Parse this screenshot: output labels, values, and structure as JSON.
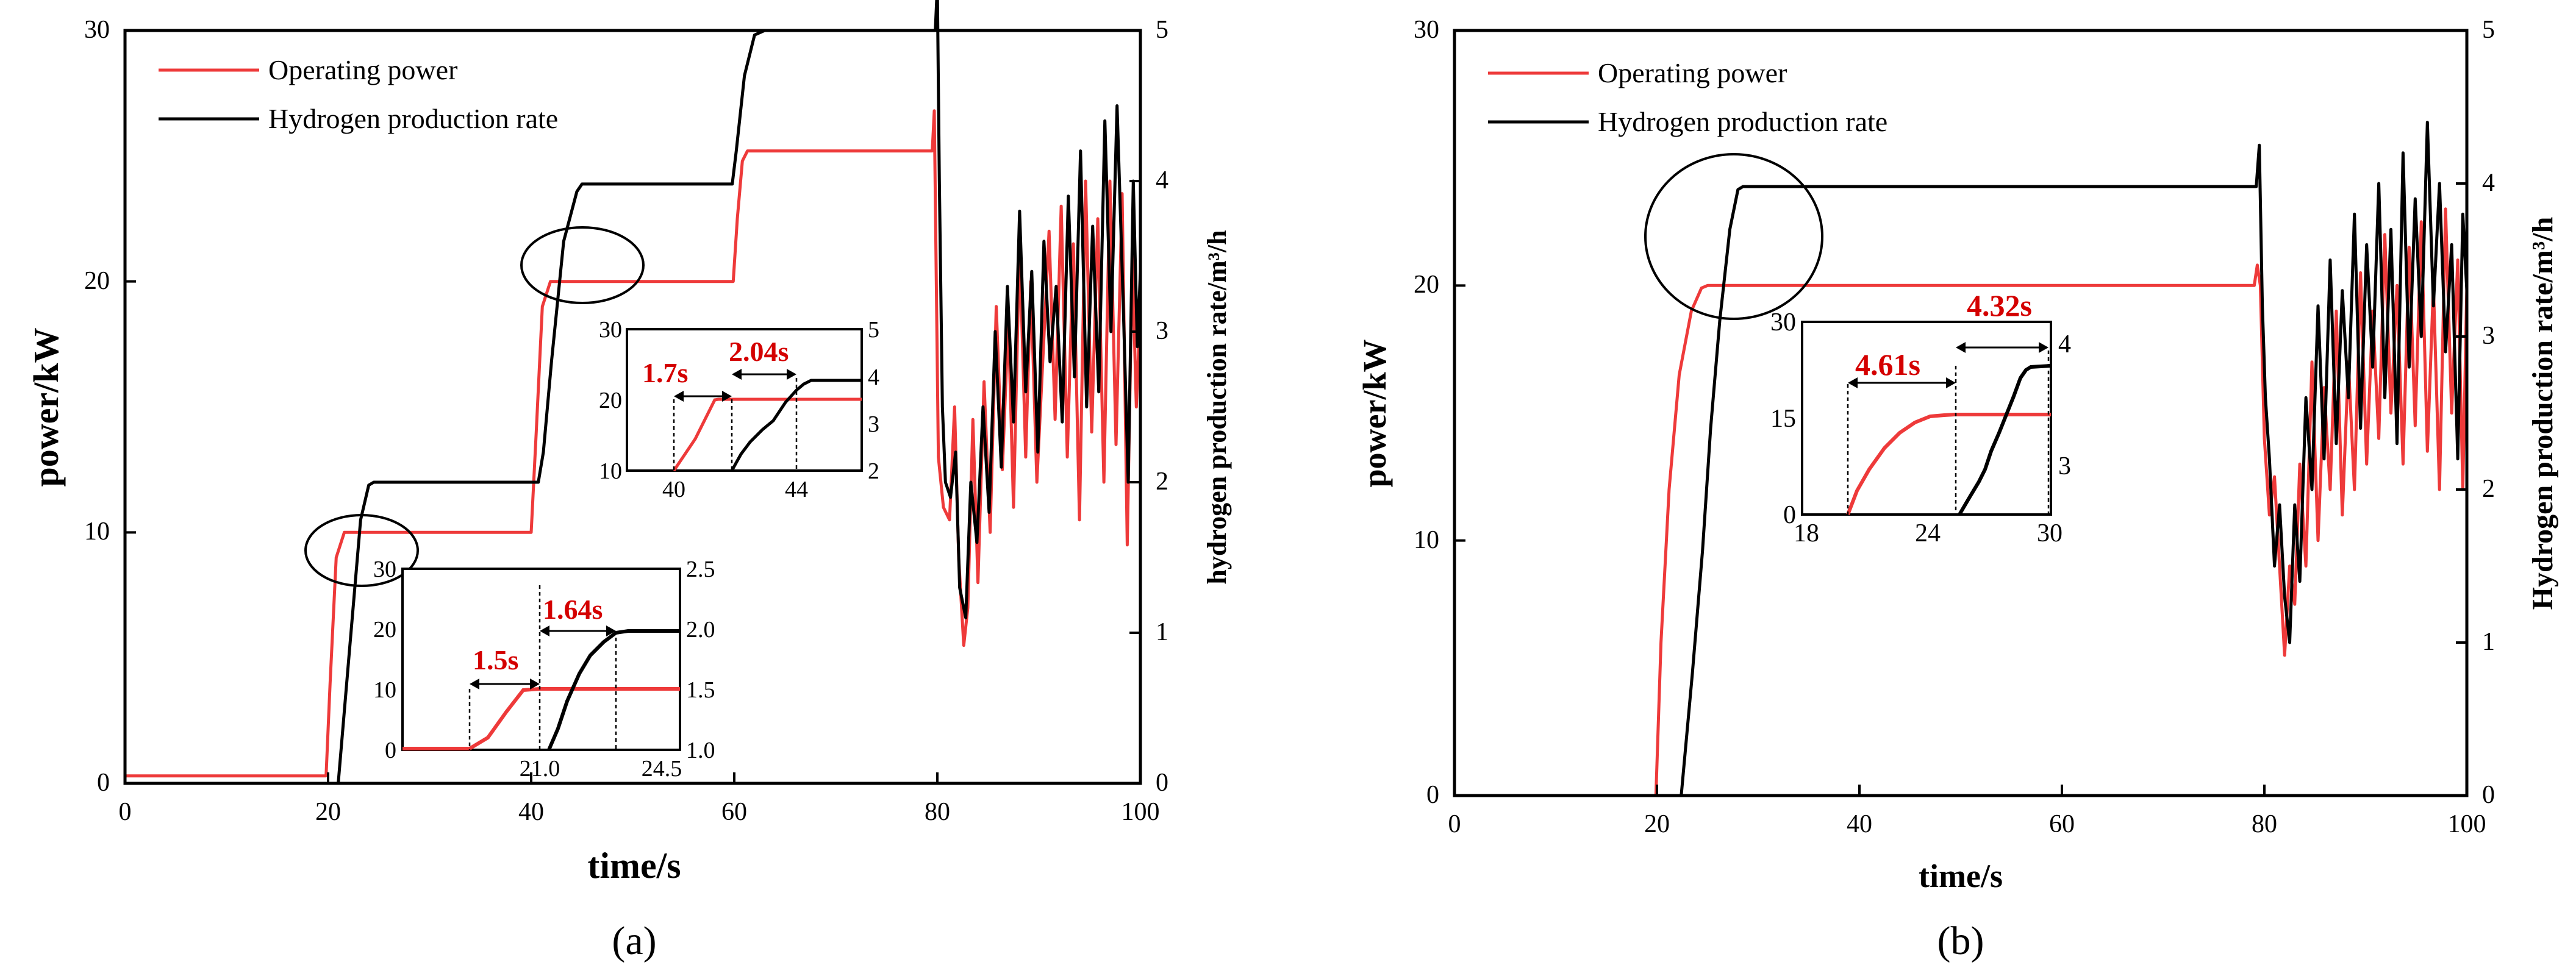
{
  "colors": {
    "power": "#ee3a3a",
    "hydrogen": "#000000",
    "annotation": "#d40000",
    "axis": "#000000",
    "background": "#ffffff"
  },
  "panels": [
    {
      "label": "(a)",
      "xlabel": "time/s",
      "ylabel_left": "power/kW",
      "ylabel_right": "hydrogen production rate/m³/h",
      "xticks": [
        "0",
        "20",
        "40",
        "60",
        "80",
        "100"
      ],
      "yticks_left": [
        "0",
        "10",
        "20",
        "30"
      ],
      "yticks_right": [
        "0",
        "1",
        "2",
        "3",
        "4",
        "5"
      ],
      "legend": [
        "Operating power",
        "Hydrogen production rate"
      ],
      "insets": [
        {
          "xticks": [
            "40",
            "44"
          ],
          "yticks_left": [
            "10",
            "20",
            "30"
          ],
          "yticks_right": [
            "2",
            "3",
            "4",
            "5"
          ],
          "annotations": [
            "1.7s",
            "2.04s"
          ]
        },
        {
          "xticks": [
            "21.0",
            "24.5"
          ],
          "yticks_left": [
            "0",
            "10",
            "20",
            "30"
          ],
          "yticks_right": [
            "1.0",
            "1.5",
            "2.0",
            "2.5"
          ],
          "annotations": [
            "1.5s",
            "1.64s"
          ]
        }
      ]
    },
    {
      "label": "(b)",
      "xlabel": "time/s",
      "ylabel_left": "power/kW",
      "ylabel_right": "Hydrogen production rate/m³/h",
      "xticks": [
        "0",
        "20",
        "40",
        "60",
        "80",
        "100"
      ],
      "yticks_left": [
        "0",
        "10",
        "20",
        "30"
      ],
      "yticks_right": [
        "0",
        "1",
        "2",
        "3",
        "4",
        "5"
      ],
      "legend": [
        "Operating power",
        "Hydrogen production rate"
      ],
      "insets": [
        {
          "xticks": [
            "18",
            "24",
            "30"
          ],
          "yticks_left": [
            "0",
            "15",
            "30"
          ],
          "yticks_right": [
            "3",
            "4"
          ],
          "annotations": [
            "4.61s",
            "4.32s"
          ]
        }
      ]
    }
  ],
  "chart_data": [
    {
      "type": "line",
      "title": "(a)",
      "xlabel": "time/s",
      "ylabel": "power/kW",
      "ylabel_right": "hydrogen production rate/m³/h",
      "xlim": [
        0,
        100
      ],
      "ylim": [
        0,
        30
      ],
      "ylim_right": [
        0,
        5
      ],
      "legend_position": "top-left",
      "series": [
        {
          "name": "Operating power",
          "axis": "left",
          "x": [
            0,
            19.8,
            20.2,
            20.8,
            21.6,
            40.0,
            40.5,
            41.1,
            41.9,
            59.9,
            60.3,
            60.8,
            61.3,
            79.5,
            79.7,
            80.1,
            80.6,
            81.2,
            81.7,
            82.1,
            82.6,
            83.0,
            83.5,
            84.0,
            84.6,
            85.2,
            85.8,
            86.4,
            87.0,
            87.5,
            88.1,
            88.7,
            89.2,
            89.8,
            90.4,
            91.0,
            91.6,
            92.2,
            92.8,
            93.4,
            94.0,
            94.6,
            95.2,
            95.8,
            96.4,
            97.0,
            97.6,
            98.2,
            98.7,
            99.2,
            99.6,
            100
          ],
          "y": [
            0.3,
            0.3,
            4.0,
            9.0,
            10.0,
            10.0,
            14.0,
            19.0,
            20.0,
            20.0,
            22.5,
            24.8,
            25.2,
            25.2,
            26.8,
            13.0,
            11.0,
            10.5,
            15.0,
            9.0,
            5.5,
            7.0,
            14.5,
            8.0,
            16.0,
            10.0,
            19.0,
            12.5,
            18.5,
            11.0,
            21.5,
            13.0,
            20.0,
            12.0,
            17.0,
            22.0,
            14.5,
            23.0,
            13.0,
            21.5,
            10.5,
            24.0,
            14.0,
            22.5,
            12.0,
            24.0,
            13.5,
            23.5,
            9.5,
            21.0,
            15.0,
            19.0
          ]
        },
        {
          "name": "Hydrogen production rate",
          "axis": "right",
          "x": [
            0,
            21.0,
            22.0,
            23.2,
            24.0,
            24.5,
            40.7,
            41.2,
            42.0,
            43.2,
            44.5,
            45.0,
            59.8,
            60.2,
            61.0,
            62.0,
            63.0,
            79.8,
            80.0,
            80.2,
            80.5,
            80.8,
            81.3,
            81.8,
            82.2,
            82.8,
            83.3,
            83.9,
            84.5,
            85.1,
            85.7,
            86.3,
            86.9,
            87.5,
            88.1,
            88.7,
            89.3,
            89.9,
            90.5,
            91.1,
            91.7,
            92.3,
            92.9,
            93.5,
            94.1,
            94.7,
            95.3,
            95.9,
            96.5,
            97.1,
            97.7,
            98.3,
            98.8,
            99.3,
            99.7,
            100
          ],
          "y": [
            0.0,
            0.0,
            0.8,
            1.75,
            1.98,
            2.0,
            2.0,
            2.2,
            2.8,
            3.6,
            3.93,
            3.98,
            3.98,
            4.2,
            4.7,
            4.97,
            5.0,
            5.0,
            5.3,
            4.0,
            2.5,
            2.0,
            1.9,
            2.2,
            1.3,
            1.1,
            2.0,
            1.6,
            2.5,
            1.8,
            3.0,
            2.1,
            3.3,
            2.4,
            3.8,
            2.6,
            3.4,
            2.2,
            3.6,
            2.8,
            3.3,
            2.4,
            3.9,
            2.7,
            4.2,
            2.5,
            3.7,
            2.6,
            4.4,
            3.0,
            4.5,
            3.2,
            2.0,
            4.0,
            2.9,
            3.4
          ]
        }
      ]
    },
    {
      "type": "line",
      "title": "(b)",
      "xlabel": "time/s",
      "ylabel": "power/kW",
      "ylabel_right": "Hydrogen production rate/m³/h",
      "xlim": [
        0,
        100
      ],
      "ylim": [
        0,
        30
      ],
      "ylim_right": [
        0,
        5
      ],
      "legend_position": "top-left",
      "series": [
        {
          "name": "Operating power",
          "axis": "left",
          "x": [
            19.9,
            20.4,
            21.2,
            22.2,
            23.4,
            24.4,
            25.0,
            79.0,
            79.3,
            79.6,
            80.0,
            80.5,
            81.0,
            81.5,
            82.0,
            82.5,
            83.0,
            83.5,
            84.1,
            84.7,
            85.3,
            85.9,
            86.5,
            87.1,
            87.7,
            88.3,
            88.9,
            89.5,
            90.1,
            90.7,
            91.3,
            91.9,
            92.5,
            93.1,
            93.7,
            94.3,
            94.9,
            95.5,
            96.1,
            96.7,
            97.3,
            97.9,
            98.5,
            99.1,
            99.6,
            100
          ],
          "y": [
            0.0,
            6.0,
            12.0,
            16.5,
            19.0,
            19.9,
            20.0,
            20.0,
            20.8,
            20.0,
            14.0,
            11.0,
            12.5,
            9.0,
            5.5,
            9.0,
            7.5,
            13.0,
            9.0,
            17.0,
            10.0,
            16.0,
            12.0,
            19.0,
            11.0,
            17.0,
            12.0,
            20.5,
            13.0,
            19.0,
            14.0,
            22.0,
            15.0,
            20.0,
            13.0,
            21.5,
            14.5,
            22.5,
            13.5,
            20.0,
            12.0,
            23.0,
            15.0,
            21.0,
            12.0,
            20.0
          ]
        },
        {
          "name": "Hydrogen production rate",
          "axis": "right",
          "x": [
            22.4,
            23.5,
            24.5,
            25.3,
            26.2,
            27.2,
            28.0,
            28.5,
            50.0,
            79.2,
            79.5,
            79.8,
            80.1,
            80.5,
            81.0,
            81.5,
            82.0,
            82.5,
            83.0,
            83.5,
            84.1,
            84.7,
            85.3,
            85.9,
            86.5,
            87.1,
            87.7,
            88.3,
            88.9,
            89.5,
            90.1,
            90.7,
            91.3,
            91.9,
            92.5,
            93.1,
            93.7,
            94.3,
            94.9,
            95.5,
            96.1,
            96.7,
            97.3,
            97.9,
            98.5,
            99.1,
            99.6,
            100
          ],
          "y": [
            0.0,
            0.8,
            1.6,
            2.4,
            3.1,
            3.7,
            3.96,
            3.98,
            3.98,
            3.98,
            4.25,
            3.2,
            2.6,
            2.2,
            1.5,
            1.9,
            1.3,
            1.0,
            1.9,
            1.4,
            2.6,
            2.0,
            3.2,
            2.2,
            3.5,
            2.3,
            3.3,
            2.6,
            3.8,
            2.4,
            3.6,
            2.8,
            4.0,
            2.6,
            3.7,
            2.3,
            4.2,
            2.8,
            3.9,
            3.0,
            4.4,
            3.2,
            4.0,
            2.9,
            3.6,
            2.2,
            3.8,
            3.3
          ]
        }
      ]
    }
  ]
}
